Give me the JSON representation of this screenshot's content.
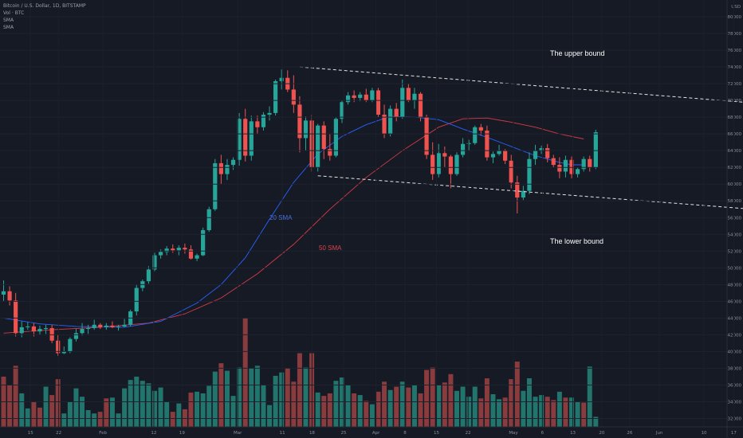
{
  "legend": {
    "symbol": "Bitcoin / U.S. Dollar, 1D, BITSTAMP",
    "volume": "Vol · BTC",
    "sma1": "SMA",
    "sma2": "SMA"
  },
  "currency": "USD",
  "chart_data": {
    "type": "candlestick",
    "ylim": [
      31000,
      82000
    ],
    "y_ticks": [
      32000,
      34000,
      36000,
      38000,
      40000,
      42000,
      44000,
      46000,
      48000,
      50000,
      52000,
      54000,
      56000,
      58000,
      60000,
      62000,
      64000,
      66000,
      68000,
      70000,
      72000,
      74000,
      76000,
      78000,
      80000
    ],
    "x_ticks": [
      {
        "label": "15",
        "x": 0.082
      },
      {
        "label": "22",
        "x": 0.158
      },
      {
        "label": "Feb",
        "x": 0.277
      },
      {
        "label": "12",
        "x": 0.414
      },
      {
        "label": "19",
        "x": 0.49
      },
      {
        "label": "Mar",
        "x": 0.64
      },
      {
        "label": "11",
        "x": 0.76
      },
      {
        "label": "18",
        "x": 0.84
      },
      {
        "label": "25",
        "x": 0.925
      },
      {
        "label": "Apr",
        "x": 1.012
      },
      {
        "label": "8",
        "x": 1.09
      },
      {
        "label": "15",
        "x": 1.175
      },
      {
        "label": "22",
        "x": 1.26
      },
      {
        "label": "May",
        "x": 1.382
      },
      {
        "label": "6",
        "x": 1.46
      },
      {
        "label": "13",
        "x": 1.542
      },
      {
        "label": "20",
        "x": 1.62
      },
      {
        "label": "26",
        "x": 1.695
      },
      {
        "label": "Jun",
        "x": 1.775
      },
      {
        "label": "10",
        "x": 1.895
      },
      {
        "label": "17",
        "x": 1.975
      }
    ],
    "candles": [
      [
        46800,
        48500,
        46000,
        47200
      ],
      [
        47200,
        47800,
        45500,
        46100
      ],
      [
        46100,
        47000,
        41800,
        42200
      ],
      [
        42200,
        43600,
        41700,
        42900
      ],
      [
        42900,
        43500,
        42600,
        43000
      ],
      [
        43000,
        43400,
        41800,
        42400
      ],
      [
        42400,
        43100,
        42000,
        42700
      ],
      [
        42700,
        43200,
        42100,
        42800
      ],
      [
        42800,
        43200,
        41000,
        41300
      ],
      [
        41300,
        42000,
        39500,
        39800
      ],
      [
        39800,
        40600,
        39700,
        40000
      ],
      [
        40000,
        41700,
        39800,
        41500
      ],
      [
        41500,
        42700,
        41200,
        42200
      ],
      [
        42200,
        43400,
        41900,
        42700
      ],
      [
        42700,
        43200,
        42100,
        42800
      ],
      [
        42800,
        43800,
        42600,
        43200
      ],
      [
        43200,
        43400,
        42700,
        42900
      ],
      [
        42900,
        43400,
        42600,
        43100
      ],
      [
        43100,
        43600,
        42800,
        42900
      ],
      [
        42900,
        43200,
        42500,
        43000
      ],
      [
        43000,
        43900,
        42900,
        43200
      ],
      [
        43200,
        45000,
        43000,
        44800
      ],
      [
        44800,
        48000,
        44300,
        47600
      ],
      [
        47600,
        48600,
        47200,
        48400
      ],
      [
        48400,
        50200,
        48100,
        49800
      ],
      [
        49800,
        51800,
        49600,
        51500
      ],
      [
        51500,
        52200,
        51100,
        51900
      ],
      [
        51900,
        52600,
        51500,
        52300
      ],
      [
        52300,
        52800,
        51800,
        52100
      ],
      [
        52100,
        52700,
        51500,
        52400
      ],
      [
        52400,
        52900,
        51700,
        52200
      ],
      [
        52200,
        52700,
        51000,
        51100
      ],
      [
        51100,
        51700,
        50800,
        51500
      ],
      [
        51500,
        54800,
        51400,
        54500
      ],
      [
        54500,
        57300,
        54300,
        57000
      ],
      [
        57000,
        63000,
        56800,
        62500
      ],
      [
        62500,
        63500,
        60000,
        61200
      ],
      [
        61200,
        63000,
        60500,
        62300
      ],
      [
        62300,
        63200,
        61700,
        62900
      ],
      [
        62900,
        68500,
        62200,
        67800
      ],
      [
        67800,
        69000,
        62700,
        63400
      ],
      [
        63400,
        68200,
        62800,
        67500
      ],
      [
        67500,
        68200,
        66000,
        66800
      ],
      [
        66800,
        68600,
        66400,
        68300
      ],
      [
        68300,
        69300,
        67600,
        68500
      ],
      [
        68500,
        72500,
        68200,
        72300
      ],
      [
        72300,
        73700,
        71300,
        72700
      ],
      [
        72700,
        73600,
        71000,
        71300
      ],
      [
        71300,
        73000,
        68500,
        69500
      ],
      [
        69500,
        70500,
        63800,
        65500
      ],
      [
        65500,
        68100,
        64000,
        67600
      ],
      [
        67600,
        68300,
        61500,
        62000
      ],
      [
        62000,
        67200,
        61500,
        67000
      ],
      [
        67000,
        67500,
        63000,
        64200
      ],
      [
        64200,
        66000,
        62800,
        63400
      ],
      [
        63400,
        68000,
        63200,
        67800
      ],
      [
        67800,
        70000,
        67300,
        69800
      ],
      [
        69800,
        71000,
        69500,
        70600
      ],
      [
        70600,
        71200,
        69800,
        70300
      ],
      [
        70300,
        71000,
        69900,
        70700
      ],
      [
        70700,
        71400,
        69800,
        70000
      ],
      [
        70000,
        71500,
        69800,
        71200
      ],
      [
        71200,
        71500,
        68000,
        68300
      ],
      [
        68300,
        69500,
        65500,
        66000
      ],
      [
        66000,
        69400,
        65700,
        69000
      ],
      [
        69000,
        69700,
        67500,
        68000
      ],
      [
        68000,
        72500,
        67800,
        71500
      ],
      [
        71500,
        72000,
        69800,
        70000
      ],
      [
        70000,
        71500,
        69000,
        70800
      ],
      [
        70800,
        71000,
        67500,
        68000
      ],
      [
        68000,
        68300,
        63000,
        63500
      ],
      [
        63500,
        65000,
        60500,
        61200
      ],
      [
        61200,
        64800,
        60800,
        63700
      ],
      [
        63700,
        64500,
        62000,
        63300
      ],
      [
        63300,
        63500,
        59500,
        61200
      ],
      [
        61200,
        63800,
        61000,
        63500
      ],
      [
        63500,
        65500,
        63200,
        64800
      ],
      [
        64800,
        65300,
        64000,
        64900
      ],
      [
        64900,
        67000,
        64700,
        66800
      ],
      [
        66800,
        67200,
        65800,
        66400
      ],
      [
        66400,
        67000,
        62800,
        63200
      ],
      [
        63200,
        63900,
        62500,
        63600
      ],
      [
        63600,
        64700,
        63400,
        64000
      ],
      [
        64000,
        64200,
        62400,
        62800
      ],
      [
        62800,
        63500,
        59500,
        60200
      ],
      [
        60200,
        61000,
        56500,
        58400
      ],
      [
        58400,
        59800,
        58100,
        59200
      ],
      [
        59200,
        63800,
        58800,
        63000
      ],
      [
        63000,
        64700,
        62300,
        64000
      ],
      [
        64000,
        64600,
        63600,
        64300
      ],
      [
        64300,
        64800,
        62600,
        63100
      ],
      [
        63100,
        63500,
        62000,
        62300
      ],
      [
        62300,
        63200,
        60700,
        61500
      ],
      [
        61500,
        63400,
        60800,
        62900
      ],
      [
        62900,
        63300,
        60700,
        61200
      ],
      [
        61200,
        62000,
        60800,
        61800
      ],
      [
        61800,
        63300,
        61500,
        63000
      ],
      [
        63000,
        63400,
        61500,
        62000
      ],
      [
        62000,
        66500,
        61800,
        66200
      ]
    ],
    "volume": [
      [
        37000,
        1
      ],
      [
        36000,
        1
      ],
      [
        38300,
        1
      ],
      [
        35000,
        0
      ],
      [
        33200,
        0
      ],
      [
        34000,
        1
      ],
      [
        33300,
        1
      ],
      [
        35800,
        0
      ],
      [
        34800,
        1
      ],
      [
        36700,
        1
      ],
      [
        32600,
        0
      ],
      [
        34000,
        0
      ],
      [
        35600,
        0
      ],
      [
        34600,
        0
      ],
      [
        33000,
        0
      ],
      [
        32600,
        0
      ],
      [
        32800,
        1
      ],
      [
        34400,
        1
      ],
      [
        34500,
        0
      ],
      [
        32600,
        0
      ],
      [
        35600,
        0
      ],
      [
        36600,
        0
      ],
      [
        37000,
        0
      ],
      [
        36500,
        0
      ],
      [
        36200,
        0
      ],
      [
        35300,
        0
      ],
      [
        35700,
        0
      ],
      [
        34000,
        0
      ],
      [
        32800,
        1
      ],
      [
        33800,
        0
      ],
      [
        33100,
        1
      ],
      [
        35100,
        1
      ],
      [
        35200,
        0
      ],
      [
        35000,
        0
      ],
      [
        35900,
        0
      ],
      [
        37600,
        0
      ],
      [
        38600,
        1
      ],
      [
        37700,
        0
      ],
      [
        34700,
        0
      ],
      [
        38100,
        0
      ],
      [
        44000,
        1
      ],
      [
        38000,
        0
      ],
      [
        38300,
        0
      ],
      [
        36000,
        0
      ],
      [
        33600,
        0
      ],
      [
        37100,
        0
      ],
      [
        37500,
        0
      ],
      [
        38000,
        1
      ],
      [
        36400,
        1
      ],
      [
        39800,
        1
      ],
      [
        38100,
        0
      ],
      [
        39800,
        1
      ],
      [
        35100,
        0
      ],
      [
        34700,
        1
      ],
      [
        35000,
        1
      ],
      [
        36500,
        0
      ],
      [
        36900,
        0
      ],
      [
        36000,
        0
      ],
      [
        35000,
        1
      ],
      [
        34800,
        0
      ],
      [
        34100,
        1
      ],
      [
        33700,
        0
      ],
      [
        35200,
        1
      ],
      [
        36400,
        1
      ],
      [
        35400,
        0
      ],
      [
        35800,
        1
      ],
      [
        36400,
        0
      ],
      [
        35700,
        1
      ],
      [
        36000,
        0
      ],
      [
        35000,
        1
      ],
      [
        37800,
        1
      ],
      [
        38100,
        1
      ],
      [
        36000,
        0
      ],
      [
        36300,
        1
      ],
      [
        37300,
        1
      ],
      [
        35300,
        0
      ],
      [
        35800,
        0
      ],
      [
        34600,
        0
      ],
      [
        35800,
        0
      ],
      [
        34400,
        1
      ],
      [
        36800,
        1
      ],
      [
        34900,
        0
      ],
      [
        34300,
        0
      ],
      [
        34500,
        1
      ],
      [
        36700,
        1
      ],
      [
        38800,
        1
      ],
      [
        35300,
        0
      ],
      [
        36800,
        0
      ],
      [
        34600,
        0
      ],
      [
        34800,
        0
      ],
      [
        34600,
        1
      ],
      [
        34200,
        1
      ],
      [
        35200,
        0
      ],
      [
        34500,
        1
      ],
      [
        34500,
        0
      ],
      [
        34000,
        0
      ],
      [
        33900,
        1
      ],
      [
        38200,
        0
      ],
      [
        32200,
        0
      ]
    ],
    "sma20": [
      [
        0,
        44000
      ],
      [
        6,
        43300
      ],
      [
        12,
        43000
      ],
      [
        20,
        42900
      ],
      [
        26,
        43600
      ],
      [
        32,
        45800
      ],
      [
        36,
        48000
      ],
      [
        40,
        51200
      ],
      [
        44,
        55800
      ],
      [
        48,
        60200
      ],
      [
        52,
        63600
      ],
      [
        56,
        65700
      ],
      [
        60,
        67100
      ],
      [
        64,
        68100
      ],
      [
        68,
        68000
      ],
      [
        72,
        67700
      ],
      [
        76,
        66600
      ],
      [
        80,
        65600
      ],
      [
        84,
        64500
      ],
      [
        88,
        63400
      ],
      [
        92,
        62600
      ],
      [
        94,
        62300
      ],
      [
        96,
        62300
      ]
    ],
    "sma50": [
      [
        0,
        42200
      ],
      [
        8,
        42600
      ],
      [
        16,
        42900
      ],
      [
        24,
        43400
      ],
      [
        30,
        44500
      ],
      [
        36,
        46400
      ],
      [
        42,
        49300
      ],
      [
        48,
        52800
      ],
      [
        54,
        57000
      ],
      [
        60,
        60800
      ],
      [
        66,
        64000
      ],
      [
        72,
        66800
      ],
      [
        76,
        67800
      ],
      [
        80,
        67900
      ],
      [
        84,
        67400
      ],
      [
        88,
        66800
      ],
      [
        92,
        66000
      ],
      [
        96,
        65400
      ]
    ],
    "upper_bound_line": [
      [
        49.0,
        74000
      ],
      [
        124.0,
        69700
      ]
    ],
    "lower_bound_line": [
      [
        52.0,
        61000
      ],
      [
        124.0,
        57000
      ]
    ],
    "labels": {
      "upper": "The upper bound",
      "lower": "The lower bound",
      "sma20": "20 SMA",
      "sma50": "50 SMA"
    },
    "colors": {
      "up": "#26a69a",
      "down": "#ef5350",
      "vol_up": "#22756c",
      "vol_down": "#893b3d",
      "sma20": "#2962ff",
      "sma50": "#d53b45",
      "background": "#161a25"
    }
  }
}
